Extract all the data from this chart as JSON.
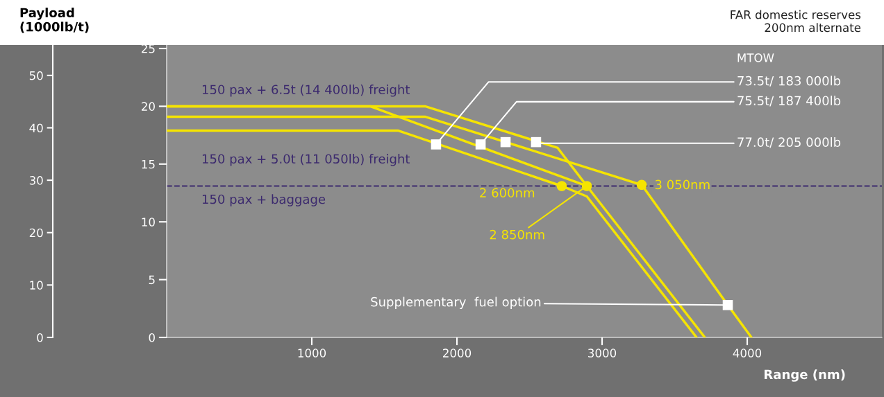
{
  "chart_data": {
    "type": "line",
    "xlabel": "Range (nm)",
    "y2label": "Payload\n(1000lb/t)",
    "legend": false,
    "xlim": [
      0,
      4928
    ],
    "xticks": [
      1000,
      2000,
      3000,
      4000
    ],
    "ylim": [
      0,
      25.3
    ],
    "yticks": [
      0,
      5,
      10,
      15,
      20,
      25
    ],
    "y2lim": [
      0,
      55.8
    ],
    "y2ticks": [
      0,
      10,
      20,
      30,
      40,
      50
    ],
    "series": [
      {
        "color": "#f5e400",
        "x": [
          0,
          1593,
          2722,
          2895,
          3651
        ],
        "values": [
          17.9,
          17.9,
          13.1,
          12.2,
          0
        ]
      },
      {
        "color": "#f5e400",
        "x": [
          0,
          1402,
          2895,
          3708
        ],
        "values": [
          20,
          20,
          13.1,
          0
        ]
      },
      {
        "color": "#f5e400",
        "x": [
          0,
          1780,
          2694,
          2895
        ],
        "values": [
          20,
          20,
          16.4,
          13.1
        ]
      },
      {
        "color": "#f5e400",
        "x": [
          0,
          1780,
          3273,
          3866,
          4029
        ],
        "values": [
          19.1,
          19.1,
          13.2,
          2.8,
          0
        ]
      },
      {
        "type": "scatter",
        "marker": "square",
        "color": "#ffffff",
        "x": [
          1856,
          2163,
          2335,
          2545,
          3866
        ],
        "values": [
          16.7,
          16.7,
          16.9,
          16.9,
          2.8
        ]
      },
      {
        "type": "scatter",
        "marker": "circle",
        "color": "#f5e400",
        "x": [
          2722,
          2895,
          3273
        ],
        "values": [
          13.1,
          13.1,
          13.2
        ]
      }
    ],
    "ref_lines": [
      {
        "axis": "y",
        "value": 13.1,
        "label": "150 pax + baggage",
        "color": "#3c2a6e",
        "line_style": "dashed"
      }
    ],
    "annotations": [
      "FAR domestic reserves\n200nm alternate",
      "MTOW",
      {
        "text": "73.5t/ 183 000lb",
        "x": 1856,
        "y": 16.7
      },
      {
        "text": "75.5t/ 187 400lb",
        "x": 2163,
        "y": 16.7
      },
      {
        "text": "77.0t/ 205 000lb",
        "x": 2545,
        "y": 16.9
      },
      "150 pax + 6.5t (14 400lb) freight",
      "150 pax + 5.0t (11 050lb) freight",
      {
        "text": "2 600nm",
        "x": 2722,
        "y": 13.1
      },
      {
        "text": "2 850nm",
        "x": 2895,
        "y": 13.1
      },
      {
        "text": "3 050nm",
        "x": 3273,
        "y": 13.2
      },
      {
        "text": "Supplementary  fuel option",
        "x": 3866,
        "y": 2.8
      }
    ]
  }
}
